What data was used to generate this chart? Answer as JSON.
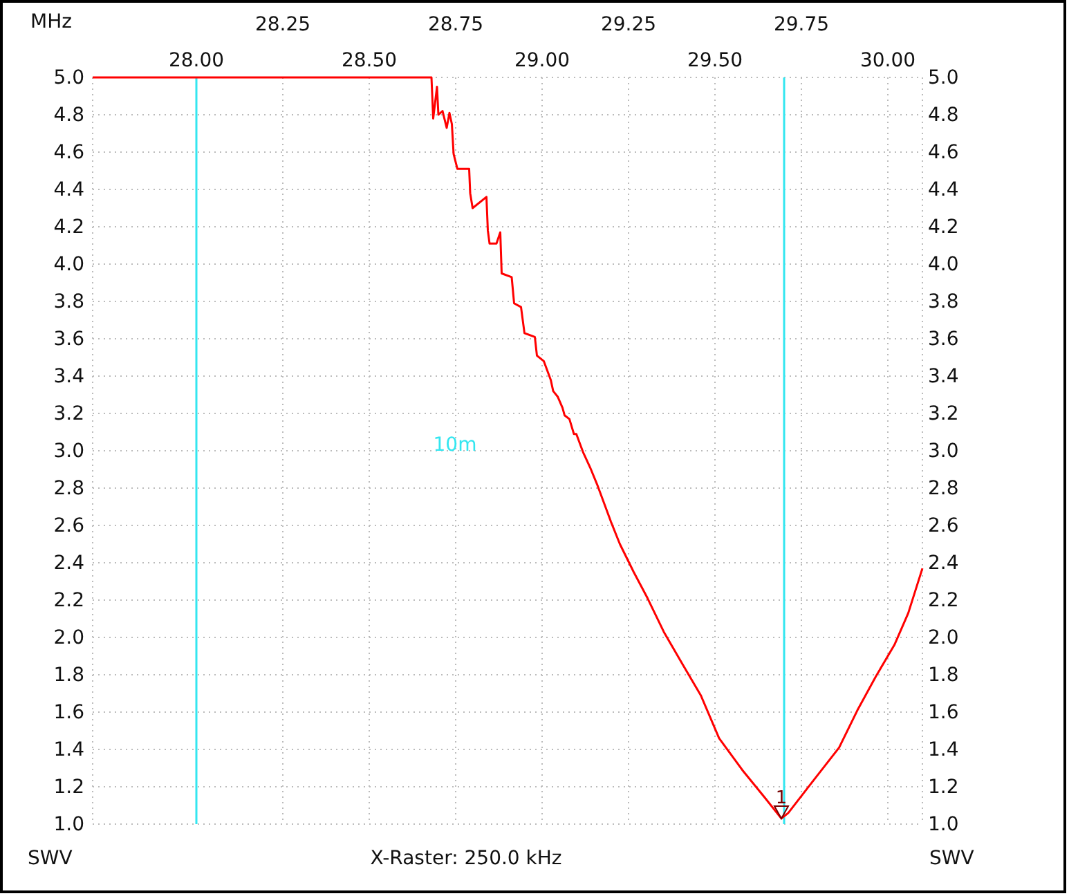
{
  "chart_data": {
    "type": "line",
    "xlabel": "MHz",
    "ylabel": "SWV",
    "y2label": "SWV",
    "annotations": [
      "X-Raster: 250.0 kHz",
      {
        "text": "1",
        "x": 29.692,
        "y": 1.03
      }
    ],
    "xlim": [
      27.7,
      30.1
    ],
    "xticks": [
      {
        "value": 28,
        "label": "28.00"
      },
      {
        "value": 28.5,
        "label": "28.50"
      },
      {
        "value": 29,
        "label": "29.00"
      },
      {
        "value": 29.5,
        "label": "29.50"
      },
      {
        "value": 30,
        "label": "30.00"
      }
    ],
    "x2lim": [
      27.7,
      30.1
    ],
    "x2ticks": [
      28.25,
      28.75,
      29.25,
      29.75
    ],
    "ylim": [
      1.0,
      5.0
    ],
    "yticks": [
      {
        "value": 1,
        "label": "1.0"
      },
      1.2,
      1.4,
      1.6,
      1.8,
      {
        "value": 2,
        "label": "2.0"
      },
      2.2,
      2.4,
      2.6,
      2.8,
      {
        "value": 3,
        "label": "3.0"
      },
      3.2,
      3.4,
      3.6,
      3.8,
      {
        "value": 4,
        "label": "4.0"
      },
      4.2,
      4.4,
      4.6,
      4.8,
      {
        "value": 5,
        "label": "5.0"
      }
    ],
    "y2lim": [
      1.0,
      5.0
    ],
    "y2ticks": [
      {
        "value": 1,
        "label": "1.0"
      },
      1.2,
      1.4,
      1.6,
      1.8,
      {
        "value": 2,
        "label": "2.0"
      },
      2.2,
      2.4,
      2.6,
      2.8,
      {
        "value": 3,
        "label": "3.0"
      },
      3.2,
      3.4,
      3.6,
      3.8,
      {
        "value": 4,
        "label": "4.0"
      },
      4.2,
      4.4,
      4.6,
      4.8,
      {
        "value": 5,
        "label": "5.0"
      }
    ],
    "grid": true,
    "marker": "none",
    "line_style": "solid",
    "ref_lines": [
      {
        "axis": "x",
        "value": 28.0,
        "label": "10m",
        "color": "#33e6f0"
      },
      {
        "axis": "x",
        "value": 29.7,
        "color": "#33e6f0"
      }
    ],
    "series": [
      {
        "color": "#ff0000",
        "x": [
          27.7,
          28.68,
          28.685,
          28.696,
          28.7,
          28.712,
          28.724,
          28.732,
          28.739,
          28.744,
          28.755,
          28.789,
          28.792,
          28.799,
          28.839,
          28.843,
          28.848,
          28.868,
          28.879,
          28.883,
          28.912,
          28.919,
          28.939,
          28.949,
          28.979,
          28.985,
          29.005,
          29.025,
          29.032,
          29.045,
          29.059,
          29.065,
          29.079,
          29.092,
          29.099,
          29.119,
          29.139,
          29.159,
          29.199,
          29.225,
          29.265,
          29.305,
          29.352,
          29.405,
          29.459,
          29.512,
          29.579,
          29.645,
          29.692,
          29.712,
          29.779,
          29.859,
          29.912,
          29.965,
          30.019,
          30.059,
          30.1
        ],
        "values": [
          5.0,
          5.0,
          4.78,
          4.95,
          4.8,
          4.82,
          4.73,
          4.81,
          4.75,
          4.59,
          4.51,
          4.51,
          4.38,
          4.3,
          4.36,
          4.18,
          4.11,
          4.11,
          4.17,
          3.95,
          3.93,
          3.79,
          3.77,
          3.63,
          3.61,
          3.51,
          3.48,
          3.38,
          3.32,
          3.29,
          3.23,
          3.19,
          3.17,
          3.09,
          3.09,
          2.99,
          2.91,
          2.82,
          2.62,
          2.5,
          2.35,
          2.21,
          2.03,
          1.86,
          1.69,
          1.46,
          1.29,
          1.14,
          1.03,
          1.06,
          1.22,
          1.41,
          1.61,
          1.79,
          1.96,
          2.13,
          2.37
        ]
      }
    ]
  }
}
